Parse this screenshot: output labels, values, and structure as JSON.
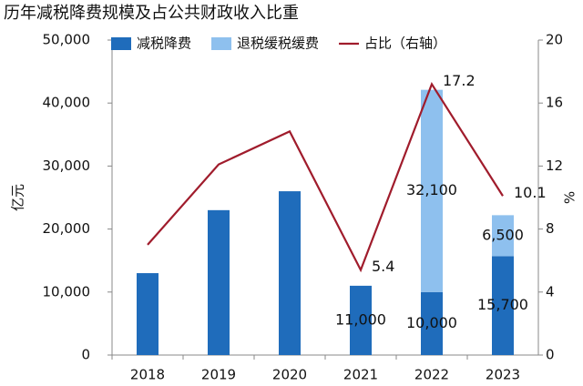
{
  "chart_data": {
    "type": "bar",
    "stacked": true,
    "title": "历年减税降费规模及占公共财政收入比重",
    "ylabel": "亿元",
    "y2label": "%",
    "categories": [
      "2018",
      "2019",
      "2020",
      "2021",
      "2022",
      "2023"
    ],
    "series": [
      {
        "name": "减税降费",
        "type": "bar",
        "color": "#1f6cbb",
        "values": [
          13000,
          23000,
          26000,
          11000,
          10000,
          15700
        ],
        "value_labels": [
          null,
          null,
          null,
          "11,000",
          "10,000",
          "15,700"
        ]
      },
      {
        "name": "退税缓税缓费",
        "type": "bar",
        "color": "#8ec0ee",
        "values": [
          null,
          null,
          null,
          null,
          32100,
          6500
        ],
        "value_labels": [
          null,
          null,
          null,
          null,
          "32,100",
          "6,500"
        ]
      },
      {
        "name": "占比（右轴）",
        "type": "line",
        "axis": "y2",
        "color": "#a01c2c",
        "values": [
          7,
          12.1,
          14.2,
          5.4,
          17.2,
          10.1
        ],
        "value_labels": [
          null,
          null,
          null,
          "5.4",
          "17.2",
          "10.1"
        ]
      }
    ],
    "ylim": [
      0,
      50000
    ],
    "yticks": [
      0,
      {
        "value": 10000,
        "label": "10,000"
      },
      {
        "value": 20000,
        "label": "20,000"
      },
      {
        "value": 30000,
        "label": "30,000"
      },
      {
        "value": 40000,
        "label": "40,000"
      },
      {
        "value": 50000,
        "label": "50,000"
      }
    ],
    "y2lim": [
      0,
      20
    ],
    "y2ticks": [
      0,
      4,
      8,
      12,
      16,
      20
    ],
    "grid": false
  }
}
